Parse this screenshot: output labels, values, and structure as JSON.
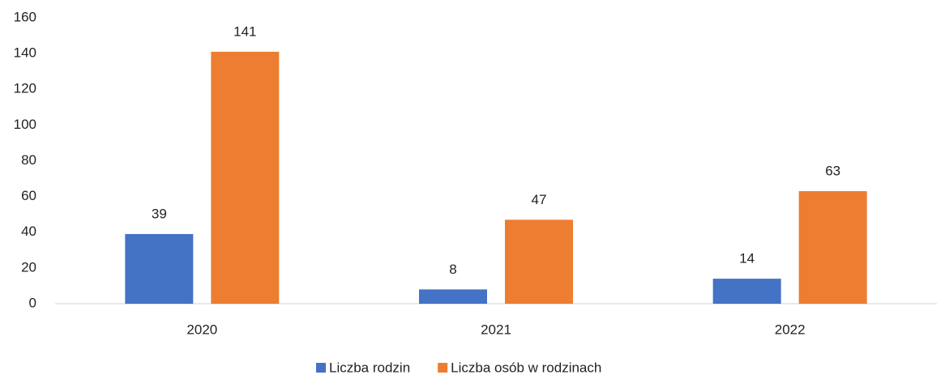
{
  "chart_data": {
    "type": "bar",
    "categories": [
      "2020",
      "2021",
      "2022"
    ],
    "series": [
      {
        "name": "Liczba rodzin",
        "color": "#4472c4",
        "values": [
          39,
          8,
          14
        ]
      },
      {
        "name": "Liczba osób w rodzinach",
        "color": "#ed7d31",
        "values": [
          141,
          47,
          63
        ]
      }
    ],
    "ylim": [
      0,
      160
    ],
    "yticks": [
      0,
      20,
      40,
      60,
      80,
      100,
      120,
      140,
      160
    ],
    "grid": false,
    "legend": "bottom"
  }
}
